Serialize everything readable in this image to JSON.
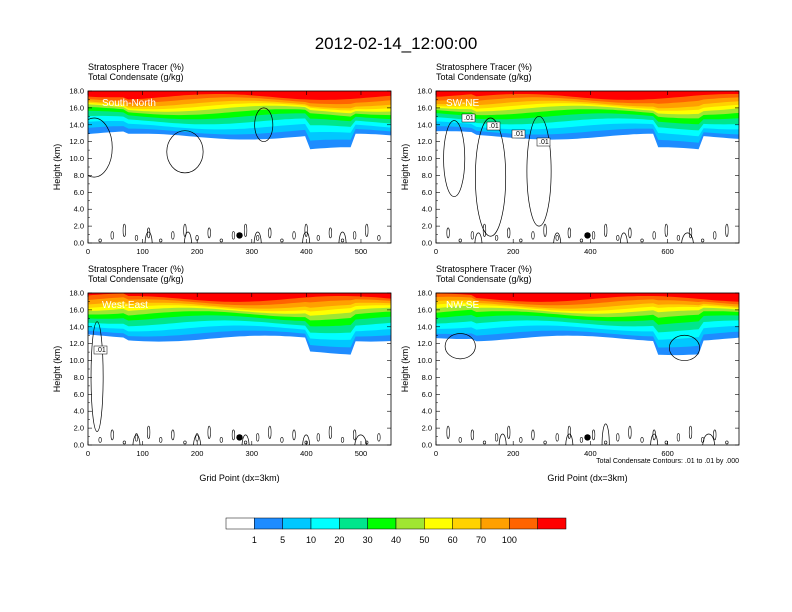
{
  "figure": {
    "title": "2012-02-14_12:00:00",
    "note": "Total Condensate Contours: .01 to .01 by .000"
  },
  "colors": {
    "white": "#ffffff",
    "blue": "#1e8cff",
    "lightblue": "#00c8ff",
    "cyan": "#00ffff",
    "seagreen": "#00e68c",
    "green": "#00ff00",
    "yellowgreen": "#a0e632",
    "yellow": "#ffff00",
    "gold": "#ffd200",
    "orange": "#ffa000",
    "orangered": "#ff6400",
    "red": "#ff0000"
  },
  "chart_data": {
    "type": "filled-contour",
    "colorbar": {
      "labels": [
        "1",
        "5",
        "10",
        "20",
        "30",
        "40",
        "50",
        "60",
        "70",
        "100"
      ],
      "colors": [
        "#ffffff",
        "#1e8cff",
        "#00c8ff",
        "#00ffff",
        "#00e68c",
        "#00ff00",
        "#a0e632",
        "#ffff00",
        "#ffd200",
        "#ffa000",
        "#ff6400",
        "#ff0000"
      ]
    },
    "panels": [
      {
        "id": "south-north",
        "label": "South-North",
        "line1": "Stratosphere Tracer   (%)",
        "line2": "Total Condensate   (g/kg)",
        "ylabel": "Height (km)",
        "xlabel": "",
        "xlim": [
          0,
          555
        ],
        "ylim": [
          0,
          18
        ],
        "xticks": [
          "0",
          "100",
          "200",
          "300",
          "400",
          "500"
        ],
        "yticks": [
          "0.0",
          "2.0",
          "4.0",
          "6.0",
          "8.0",
          "10.0",
          "12.0",
          "14.0",
          "16.0",
          "18.0"
        ],
        "contour_labels": []
      },
      {
        "id": "sw-ne",
        "label": "SW-NE",
        "line1": "Stratosphere Tracer   (%)",
        "line2": "Total Condensate   (g/kg)",
        "ylabel": "Height (km)",
        "xlabel": "",
        "xlim": [
          0,
          785
        ],
        "ylim": [
          0,
          18
        ],
        "xticks": [
          "0",
          "200",
          "400",
          "600"
        ],
        "yticks": [
          "0.0",
          "2.0",
          "4.0",
          "6.0",
          "8.0",
          "10.0",
          "12.0",
          "14.0",
          "16.0",
          "18.0"
        ],
        "contour_labels": [
          ".01",
          ".01",
          ".01",
          ".01"
        ]
      },
      {
        "id": "west-east",
        "label": "West-East",
        "line1": "Stratosphere Tracer   (%)",
        "line2": "Total Condensate   (g/kg)",
        "ylabel": "Height (km)",
        "xlabel": "Grid Point (dx=3km)",
        "xlim": [
          0,
          555
        ],
        "ylim": [
          0,
          18
        ],
        "xticks": [
          "0",
          "100",
          "200",
          "300",
          "400",
          "500"
        ],
        "yticks": [
          "0.0",
          "2.0",
          "4.0",
          "6.0",
          "8.0",
          "10.0",
          "12.0",
          "14.0",
          "16.0",
          "18.0"
        ],
        "contour_labels": [
          ".01"
        ]
      },
      {
        "id": "nw-se",
        "label": "NW-SE",
        "line1": "Stratosphere Tracer   (%)",
        "line2": "Total Condensate   (g/kg)",
        "ylabel": "Height (km)",
        "xlabel": "Grid Point (dx=3km)",
        "xlim": [
          0,
          785
        ],
        "ylim": [
          0,
          18
        ],
        "xticks": [
          "0",
          "200",
          "400",
          "600"
        ],
        "yticks": [
          "0.0",
          "2.0",
          "4.0",
          "6.0",
          "8.0",
          "10.0",
          "12.0",
          "14.0",
          "16.0",
          "18.0"
        ],
        "contour_labels": []
      }
    ]
  }
}
